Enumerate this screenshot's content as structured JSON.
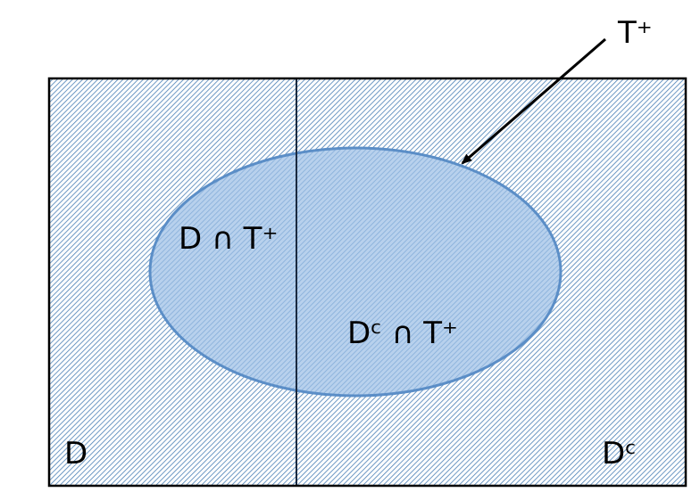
{
  "diagram": {
    "type": "venn-partition",
    "labels": {
      "event_t_plus": "T⁺",
      "set_d": "D",
      "set_dc": "Dᶜ",
      "intersection_d_t": "D ∩ T⁺",
      "intersection_dc_t": "Dᶜ ∩ T⁺"
    },
    "colors": {
      "background": "#ffffff",
      "hatch_line": "#4a7fb5",
      "ellipse_fill": "#9dbfe6",
      "ellipse_stroke": "#5b8ec7",
      "border": "#000000",
      "divider": "#1a2a40"
    }
  }
}
